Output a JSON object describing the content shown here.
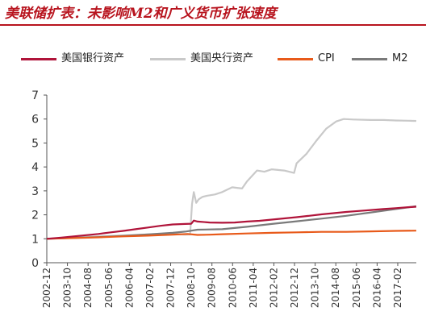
{
  "title": "美联储扩表：未影响M2和广义货币扩张速度",
  "colors": {
    "title": "#b8141e",
    "axis": "#555555"
  },
  "chart_data": {
    "type": "line",
    "title": "",
    "xlabel": "",
    "ylabel": "",
    "ylim": [
      0,
      7
    ],
    "yticks": [
      0,
      1,
      2,
      3,
      4,
      5,
      6,
      7
    ],
    "xlim": [
      2002.917,
      2017.833
    ],
    "xticks": [
      "2002-12",
      "2003-10",
      "2004-08",
      "2005-06",
      "2006-04",
      "2007-02",
      "2007-12",
      "2008-10",
      "2009-08",
      "2010-06",
      "2011-04",
      "2012-02",
      "2012-12",
      "2013-10",
      "2014-08",
      "2015-06",
      "2016-04",
      "2017-02"
    ],
    "grid": false,
    "legend_position": "top",
    "series": [
      {
        "name": "美国银行资产",
        "color": "#b0143a",
        "x": [
          2002.92,
          2003.5,
          2004.0,
          2004.5,
          2005.0,
          2005.5,
          2006.0,
          2006.5,
          2007.0,
          2007.5,
          2008.0,
          2008.5,
          2008.75,
          2008.85,
          2009.0,
          2009.5,
          2010.0,
          2010.5,
          2011.0,
          2011.5,
          2012.0,
          2012.5,
          2013.0,
          2013.5,
          2014.0,
          2014.5,
          2015.0,
          2015.5,
          2016.0,
          2016.5,
          2017.0,
          2017.5,
          2017.83
        ],
        "y": [
          1.0,
          1.05,
          1.1,
          1.15,
          1.2,
          1.27,
          1.33,
          1.4,
          1.47,
          1.54,
          1.6,
          1.62,
          1.63,
          1.76,
          1.72,
          1.68,
          1.67,
          1.68,
          1.72,
          1.75,
          1.8,
          1.85,
          1.9,
          1.96,
          2.02,
          2.07,
          2.12,
          2.16,
          2.2,
          2.24,
          2.28,
          2.32,
          2.34
        ]
      },
      {
        "name": "美国央行资产",
        "color": "#c9c9c9",
        "x": [
          2002.92,
          2003.5,
          2004.0,
          2004.5,
          2005.0,
          2005.5,
          2006.0,
          2006.5,
          2007.0,
          2007.5,
          2008.0,
          2008.5,
          2008.7,
          2008.78,
          2008.85,
          2008.95,
          2009.05,
          2009.2,
          2009.4,
          2009.7,
          2010.0,
          2010.4,
          2010.8,
          2011.0,
          2011.4,
          2011.7,
          2012.0,
          2012.5,
          2012.9,
          2013.0,
          2013.4,
          2013.8,
          2014.2,
          2014.6,
          2014.9,
          2015.3,
          2016.0,
          2016.5,
          2017.0,
          2017.5,
          2017.83
        ],
        "y": [
          1.0,
          1.03,
          1.05,
          1.08,
          1.1,
          1.12,
          1.14,
          1.16,
          1.18,
          1.19,
          1.2,
          1.17,
          1.18,
          2.45,
          2.95,
          2.5,
          2.65,
          2.75,
          2.8,
          2.85,
          2.95,
          3.15,
          3.1,
          3.4,
          3.85,
          3.8,
          3.9,
          3.85,
          3.75,
          4.15,
          4.55,
          5.1,
          5.6,
          5.9,
          6.0,
          5.98,
          5.96,
          5.96,
          5.94,
          5.93,
          5.92
        ]
      },
      {
        "name": "CPI",
        "color": "#e85a1a",
        "x": [
          2002.92,
          2004.0,
          2005.0,
          2006.0,
          2007.0,
          2008.0,
          2008.6,
          2009.0,
          2009.5,
          2010.0,
          2011.0,
          2012.0,
          2013.0,
          2014.0,
          2015.0,
          2016.0,
          2017.0,
          2017.83
        ],
        "y": [
          1.0,
          1.03,
          1.06,
          1.1,
          1.13,
          1.17,
          1.2,
          1.16,
          1.17,
          1.19,
          1.22,
          1.25,
          1.27,
          1.29,
          1.29,
          1.31,
          1.33,
          1.34
        ]
      },
      {
        "name": "M2",
        "color": "#7a7a7a",
        "x": [
          2002.92,
          2004.0,
          2005.0,
          2006.0,
          2007.0,
          2008.0,
          2008.5,
          2009.0,
          2010.0,
          2011.0,
          2012.0,
          2013.0,
          2014.0,
          2015.0,
          2016.0,
          2017.0,
          2017.83
        ],
        "y": [
          1.0,
          1.04,
          1.07,
          1.12,
          1.18,
          1.25,
          1.3,
          1.38,
          1.4,
          1.5,
          1.62,
          1.73,
          1.84,
          1.96,
          2.1,
          2.24,
          2.36
        ]
      }
    ]
  }
}
